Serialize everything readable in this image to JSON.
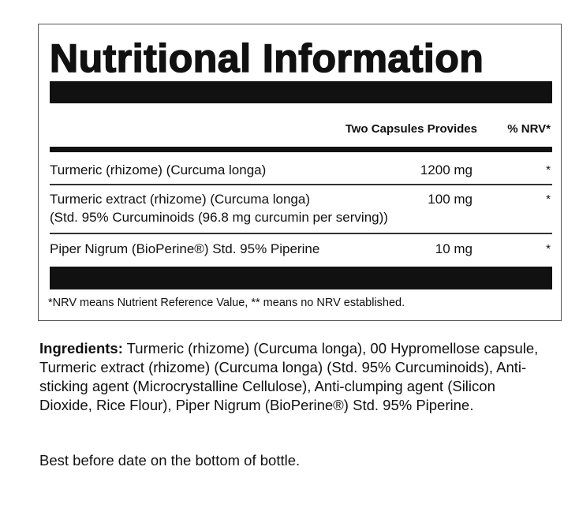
{
  "panel": {
    "title": "Nutritional Information",
    "header": {
      "amount": "Two Capsules Provides",
      "nrv": "% NRV*"
    },
    "rows": [
      {
        "name": "Turmeric (rhizome) (Curcuma longa)",
        "amount": "1200 mg",
        "nrv": "*"
      },
      {
        "name": "Turmeric extract (rhizome) (Curcuma longa)",
        "name2": "(Std. 95% Curcuminoids (96.8 mg curcumin per serving))",
        "amount": "100 mg",
        "nrv": "*"
      },
      {
        "name": "Piper Nigrum (BioPerine®) Std. 95% Piperine",
        "amount": "10 mg",
        "nrv": "*"
      }
    ],
    "footnote": "*NRV means Nutrient Reference Value, ** means no NRV established."
  },
  "ingredients": {
    "label": "Ingredients:",
    "text": " Turmeric (rhizome) (Curcuma longa), 00 Hypromellose capsule, Turmeric extract (rhizome) (Curcuma longa) (Std. 95% Curcuminoids), Anti-sticking agent (Microcrystalline Cellulose), Anti-clumping agent (Silicon Dioxide, Rice Flour), Piper Nigrum (BioPerine®) Std. 95% Piperine."
  },
  "best_before": "Best before date on the bottom of bottle."
}
